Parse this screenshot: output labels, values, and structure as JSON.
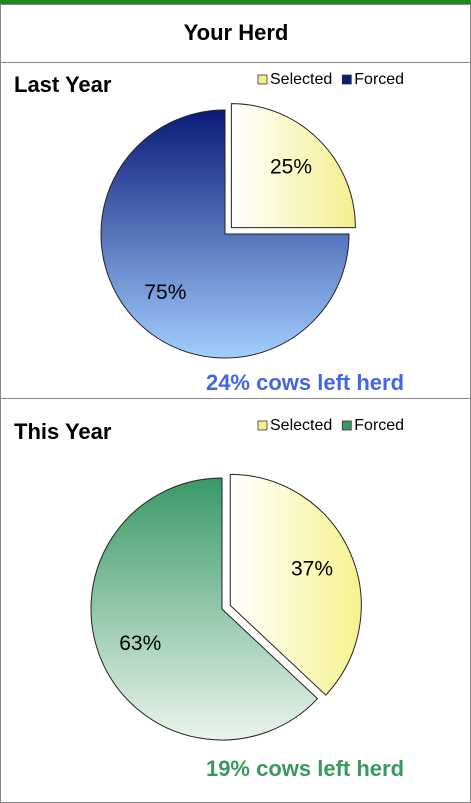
{
  "header": {
    "title": "Your Herd"
  },
  "chart_data": [
    {
      "type": "pie",
      "title": "Last Year",
      "categories": [
        "Selected",
        "Forced"
      ],
      "values": [
        25,
        75
      ],
      "value_labels": [
        "25%",
        "75%"
      ],
      "colors": [
        [
          "#ffffff",
          "#f3ef8e"
        ],
        [
          "#0b1a78",
          "#a2ceff"
        ]
      ],
      "explode": [
        true,
        false
      ],
      "legend": "top-right",
      "annotation": "24% cows left herd",
      "annotation_color": "#4466e0"
    },
    {
      "type": "pie",
      "title": "This Year",
      "categories": [
        "Selected",
        "Forced"
      ],
      "values": [
        37,
        63
      ],
      "value_labels": [
        "37%",
        "63%"
      ],
      "colors": [
        [
          "#ffffff",
          "#f6f28e"
        ],
        [
          "#3a9967",
          "#eaf4ec"
        ]
      ],
      "explode": [
        true,
        false
      ],
      "legend": "top-right",
      "annotation": "19% cows left herd",
      "annotation_color": "#3a9a5e"
    }
  ]
}
